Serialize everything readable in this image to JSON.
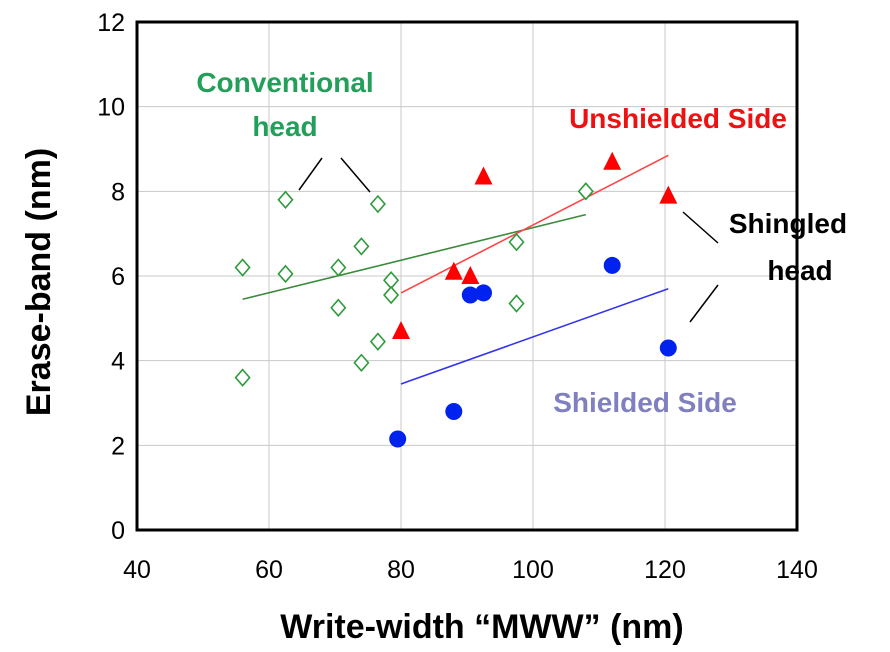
{
  "chart_data": {
    "type": "scatter",
    "title": "",
    "xlabel": "Write-width “MWW” (nm)",
    "ylabel": "Erase-band (nm)",
    "xlim": [
      40,
      140
    ],
    "ylim": [
      0,
      12
    ],
    "x_ticks": [
      "40",
      "60",
      "80",
      "100",
      "120",
      "140"
    ],
    "y_ticks": [
      "0",
      "2",
      "4",
      "6",
      "8",
      "10",
      "12"
    ],
    "grid": true,
    "series": [
      {
        "marker": "diamond-open",
        "color": "#2e9a3c",
        "points": [
          [
            56,
            6.2
          ],
          [
            56,
            3.6
          ],
          [
            62.5,
            7.8
          ],
          [
            62.5,
            6.05
          ],
          [
            70.5,
            6.2
          ],
          [
            70.5,
            5.25
          ],
          [
            74,
            6.7
          ],
          [
            74,
            3.95
          ],
          [
            76.5,
            7.7
          ],
          [
            76.5,
            4.45
          ],
          [
            78.5,
            5.9
          ],
          [
            78.5,
            5.55
          ],
          [
            97.5,
            6.8
          ],
          [
            97.5,
            5.35
          ],
          [
            108,
            8.0
          ]
        ],
        "fit": [
          [
            56,
            5.45
          ],
          [
            108,
            7.45
          ]
        ],
        "fit_color": "#3a8a3a"
      },
      {
        "marker": "triangle",
        "color": "#ff0000",
        "points": [
          [
            80,
            4.7
          ],
          [
            88,
            6.1
          ],
          [
            90.5,
            6.0
          ],
          [
            92.5,
            8.35
          ],
          [
            112,
            8.7
          ],
          [
            120.5,
            7.9
          ]
        ],
        "fit": [
          [
            80,
            5.6
          ],
          [
            120.5,
            8.85
          ]
        ],
        "fit_color": "#ff4444"
      },
      {
        "marker": "circle",
        "color": "#0022ee",
        "points": [
          [
            79.5,
            2.15
          ],
          [
            88,
            2.8
          ],
          [
            90.5,
            5.55
          ],
          [
            92.5,
            5.6
          ],
          [
            112,
            6.25
          ],
          [
            120.5,
            4.3
          ]
        ],
        "fit": [
          [
            80,
            3.45
          ],
          [
            120.5,
            5.7
          ]
        ],
        "fit_color": "#3333ee"
      }
    ],
    "annotations": [
      {
        "lines": [
          "Conventional",
          "head"
        ],
        "color": "#22a05a"
      },
      {
        "lines": [
          "Unshielded Side"
        ],
        "color": "#ee1111"
      },
      {
        "lines": [
          "Shingled",
          "head"
        ],
        "color": "#000000"
      },
      {
        "lines": [
          "Shielded Side"
        ],
        "color": "#8080c0"
      }
    ]
  }
}
